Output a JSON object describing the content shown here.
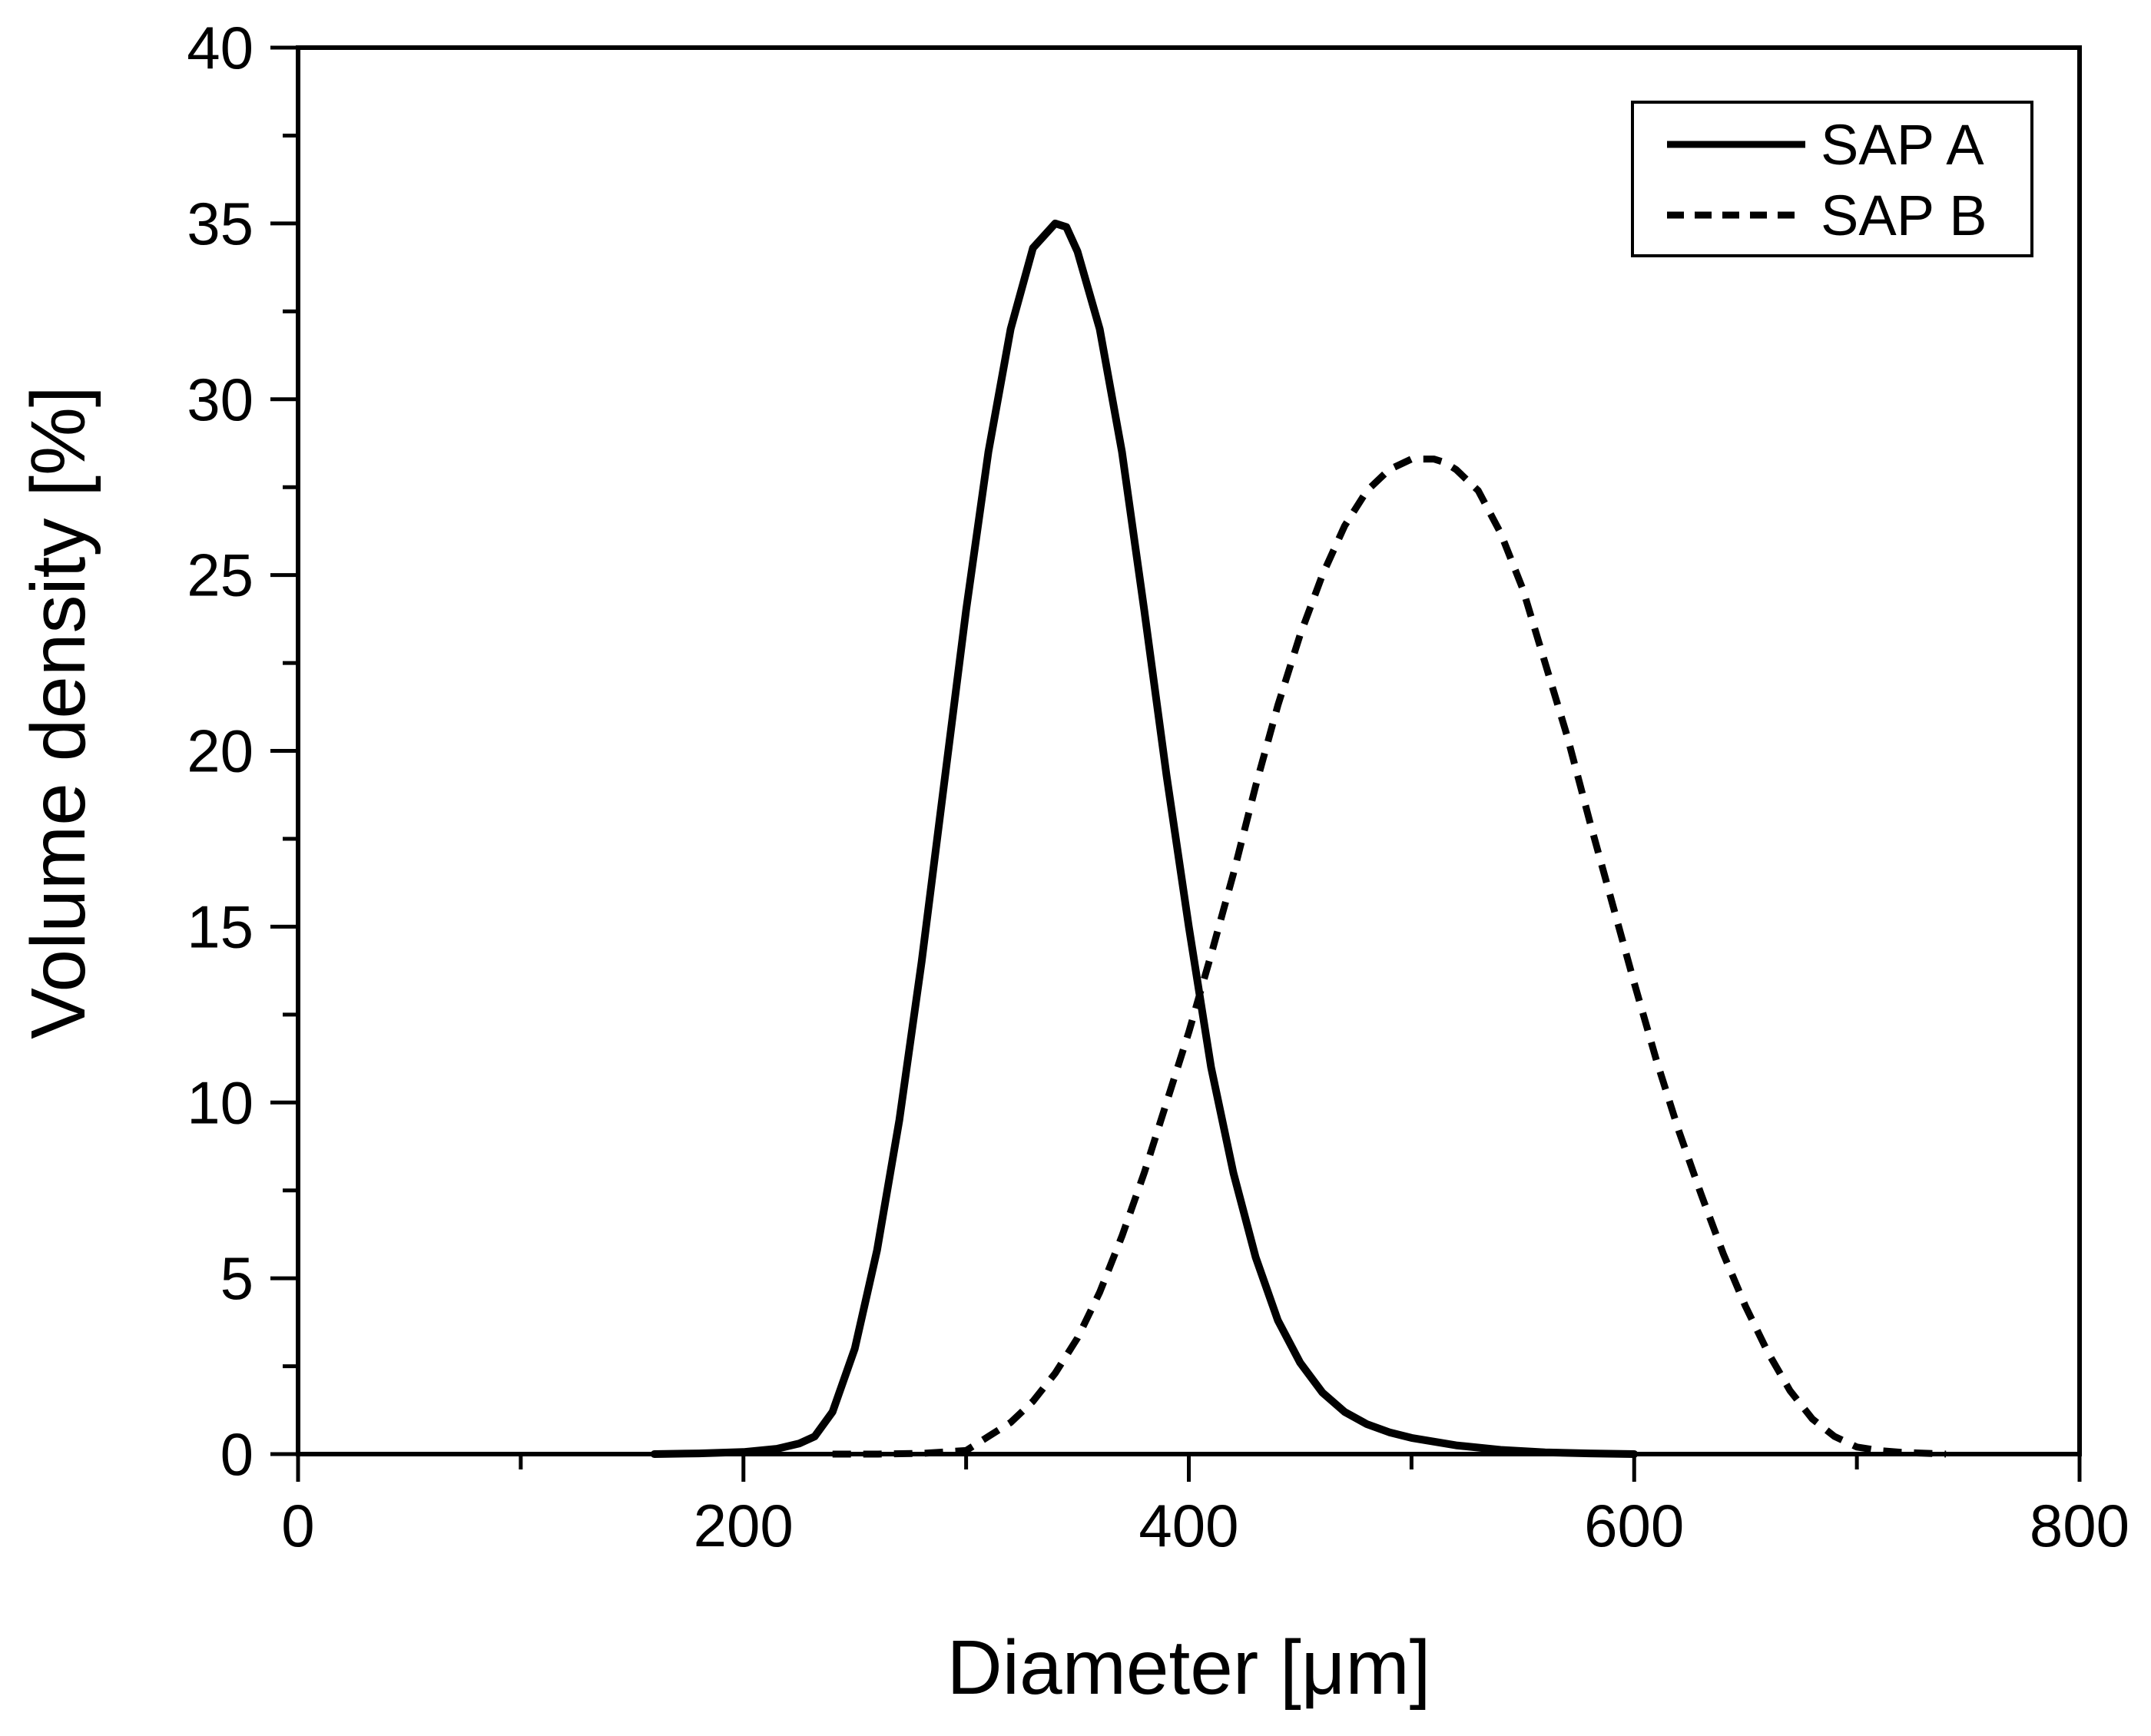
{
  "chart_data": {
    "type": "line",
    "xlabel": "Diameter [μm]",
    "ylabel": "Volume density [%]",
    "xlim": [
      0,
      800
    ],
    "ylim": [
      0,
      40
    ],
    "xticks": [
      0,
      200,
      400,
      600,
      800
    ],
    "yticks": [
      0,
      5,
      10,
      15,
      20,
      25,
      30,
      35,
      40
    ],
    "xtick_labels": [
      "0",
      "200",
      "400",
      "600",
      "800"
    ],
    "ytick_labels": [
      "0",
      "5",
      "10",
      "15",
      "20",
      "25",
      "30",
      "35",
      "40"
    ],
    "grid": false,
    "legend_position": "top-right",
    "series": [
      {
        "name": "SAP A",
        "style": "solid",
        "color": "#000000",
        "x": [
          160,
          180,
          200,
          215,
          225,
          232,
          240,
          250,
          260,
          270,
          280,
          290,
          300,
          310,
          320,
          330,
          340,
          345,
          350,
          360,
          370,
          380,
          390,
          400,
          410,
          420,
          430,
          440,
          450,
          460,
          470,
          480,
          490,
          500,
          520,
          540,
          560,
          580,
          600
        ],
        "y": [
          0.0,
          0.02,
          0.06,
          0.15,
          0.3,
          0.5,
          1.2,
          3.0,
          5.8,
          9.5,
          14.0,
          19.0,
          24.0,
          28.5,
          32.0,
          34.3,
          35.0,
          34.9,
          34.2,
          32.0,
          28.5,
          24.0,
          19.3,
          15.0,
          11.0,
          8.0,
          5.6,
          3.8,
          2.6,
          1.75,
          1.2,
          0.85,
          0.62,
          0.46,
          0.25,
          0.12,
          0.05,
          0.02,
          0.0
        ]
      },
      {
        "name": "SAP B",
        "style": "dashed",
        "color": "#000000",
        "x": [
          240,
          260,
          280,
          300,
          310,
          320,
          330,
          340,
          350,
          360,
          370,
          380,
          390,
          400,
          410,
          420,
          430,
          440,
          450,
          460,
          470,
          480,
          490,
          500,
          510,
          515,
          520,
          530,
          540,
          550,
          560,
          570,
          580,
          590,
          600,
          610,
          620,
          630,
          640,
          650,
          660,
          670,
          680,
          690,
          700,
          710,
          720,
          740
        ],
        "y": [
          0.0,
          0.0,
          0.02,
          0.1,
          0.5,
          0.9,
          1.5,
          2.3,
          3.3,
          4.6,
          6.2,
          8.0,
          10.0,
          12.0,
          14.2,
          16.5,
          19.0,
          21.3,
          23.3,
          25.0,
          26.4,
          27.4,
          28.0,
          28.3,
          28.3,
          28.2,
          28.0,
          27.4,
          26.2,
          24.6,
          22.5,
          20.4,
          18.0,
          15.7,
          13.4,
          11.2,
          9.2,
          7.4,
          5.7,
          4.2,
          2.9,
          1.8,
          1.0,
          0.5,
          0.2,
          0.1,
          0.05,
          0.0
        ]
      }
    ]
  }
}
